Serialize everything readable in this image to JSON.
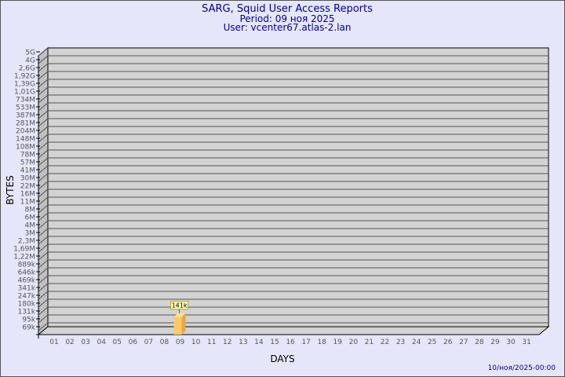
{
  "header": {
    "title": "SARG, Squid User Access Reports",
    "period": "Period: 09 ноя 2025",
    "user": "User: vcenter67.atlas-2.lan"
  },
  "footer": {
    "timestamp": "10/ноя/2025-00:00"
  },
  "chart_data": {
    "type": "bar",
    "xlabel": "DAYS",
    "ylabel": "BYTES",
    "y_scale": "log",
    "y_tick_labels": [
      "5G",
      "4G",
      "2,6G",
      "1,92G",
      "1,39G",
      "1,01G",
      "734M",
      "533M",
      "387M",
      "281M",
      "204M",
      "148M",
      "108M",
      "78M",
      "57M",
      "41M",
      "30M",
      "22M",
      "16M",
      "11M",
      "8M",
      "6M",
      "4M",
      "3M",
      "2,3M",
      "1,69M",
      "1,22M",
      "889k",
      "646k",
      "469k",
      "341k",
      "247k",
      "180k",
      "131k",
      "95k",
      "69k"
    ],
    "categories": [
      "01",
      "02",
      "03",
      "04",
      "05",
      "06",
      "07",
      "08",
      "09",
      "10",
      "11",
      "12",
      "13",
      "14",
      "15",
      "16",
      "17",
      "18",
      "19",
      "20",
      "21",
      "22",
      "23",
      "24",
      "25",
      "26",
      "27",
      "28",
      "29",
      "30",
      "31"
    ],
    "bars": [
      {
        "x": "09",
        "value": 141000,
        "label": "141k"
      }
    ],
    "grid": true,
    "colors": {
      "background": "#e6e6fa",
      "plot": "#d3d3d3",
      "bar": "#ffc966",
      "bar_side": "#e0a850",
      "text": "#00008b"
    }
  }
}
